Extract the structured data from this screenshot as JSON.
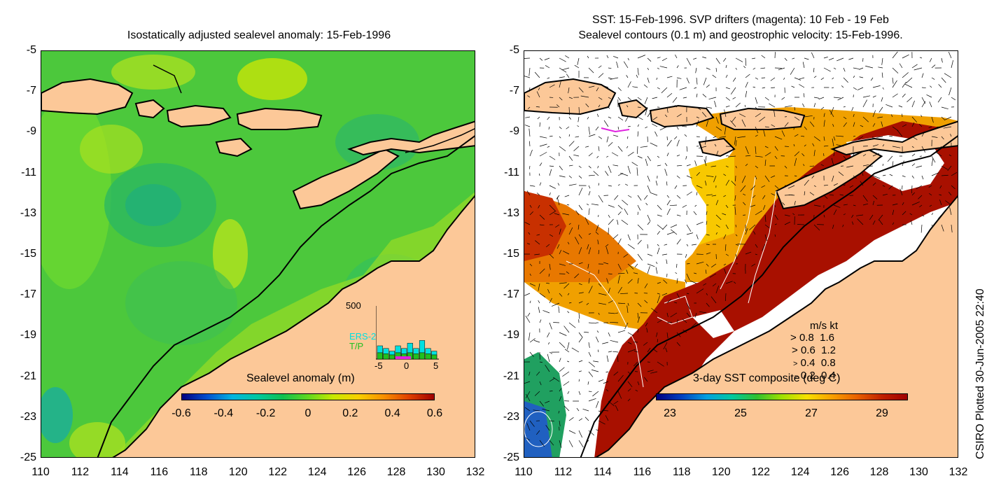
{
  "left_panel": {
    "title": "Isostatically adjusted sealevel anomaly: 15-Feb-1996",
    "colorbar_label": "Sealevel anomaly (m)",
    "colorbar_ticks": [
      "-0.6",
      "-0.4",
      "-0.2",
      "0",
      "0.2",
      "0.4",
      "0.6"
    ],
    "colorbar_colors": [
      "#00007f",
      "#0050d0",
      "#00b4e0",
      "#00c8a0",
      "#10c050",
      "#60d820",
      "#c8e800",
      "#f8d000",
      "#f89000",
      "#e04000",
      "#a00000"
    ],
    "histogram": {
      "ymax_label": "500",
      "xticks": [
        "-5",
        "0",
        "5"
      ],
      "series": [
        {
          "name": "ERS-2",
          "color": "#00e0e0",
          "values": [
            0.25,
            0.2,
            0.15,
            0.25,
            0.2,
            0.3,
            0.2,
            0.35,
            0.2,
            0.15
          ]
        },
        {
          "name": "T/P",
          "color": "#20c020",
          "values": [
            0.12,
            0.1,
            0.08,
            0.12,
            0.1,
            0.12,
            0.1,
            0.12,
            0.1,
            0.08
          ]
        }
      ]
    }
  },
  "right_panel": {
    "title_line1": "SST: 15-Feb-1996. SVP drifters (magenta): 10 Feb - 19 Feb",
    "title_line2": "Sealevel contours (0.1 m) and geostrophic velocity: 15-Feb-1996.",
    "colorbar_label": "3-day SST composite (deg C)",
    "colorbar_ticks": [
      "23",
      "25",
      "27",
      "29"
    ],
    "colorbar_colors": [
      "#00007f",
      "#0040c0",
      "#00a0e0",
      "#00c8a0",
      "#30c030",
      "#a0e000",
      "#f8e000",
      "#f8a000",
      "#e86000",
      "#c02000",
      "#a00000"
    ],
    "velocity_legend": {
      "header": "m/s  kt",
      "rows": [
        {
          "ms": "0.8",
          "kt": "1.6"
        },
        {
          "ms": "0.6",
          "kt": "1.2"
        },
        {
          "ms": "0.4",
          "kt": "0.8"
        },
        {
          "ms": "0.2",
          "kt": "0.4"
        }
      ]
    }
  },
  "axes": {
    "x_ticks": [
      "110",
      "112",
      "114",
      "116",
      "118",
      "120",
      "122",
      "124",
      "126",
      "128",
      "130",
      "132"
    ],
    "y_ticks": [
      "-5",
      "-7",
      "-9",
      "-11",
      "-13",
      "-15",
      "-17",
      "-19",
      "-21",
      "-23",
      "-25"
    ]
  },
  "credit": "CSIRO Plotted 30-Jun-2005 22:40"
}
